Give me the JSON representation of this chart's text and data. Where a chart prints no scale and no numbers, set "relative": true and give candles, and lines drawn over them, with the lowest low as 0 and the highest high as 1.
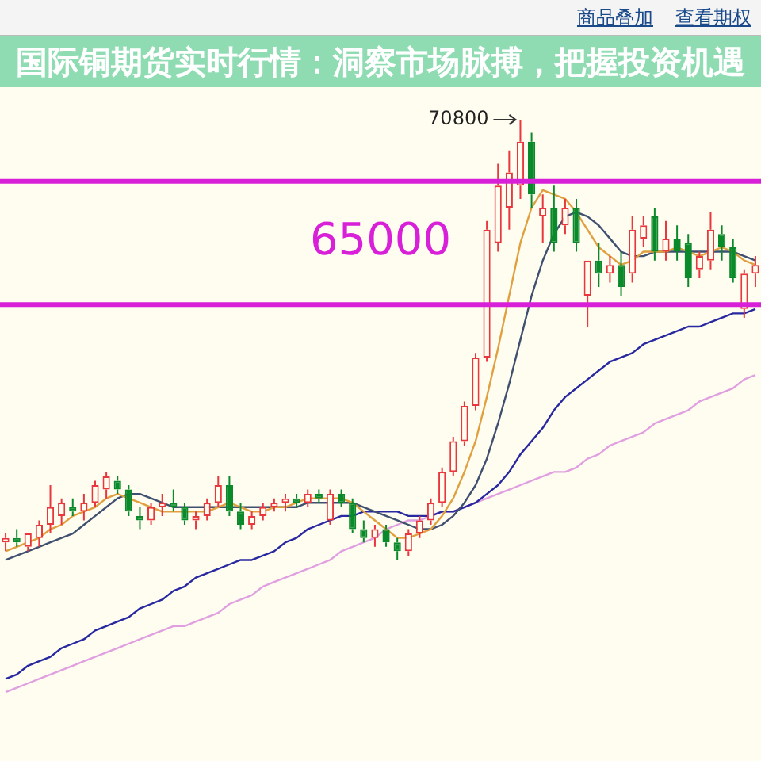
{
  "chart_data": {
    "type": "candlestick",
    "title": "国际铜期货实时行情：洞察市场脉搏，把握投资机遇",
    "relative": true,
    "categories": [
      null,
      null,
      null,
      null,
      null,
      null,
      null,
      null,
      null,
      null,
      null,
      null,
      null,
      null,
      null,
      null,
      null,
      null,
      null,
      null,
      null,
      null,
      null,
      null,
      null,
      null,
      null,
      null,
      null,
      null,
      null,
      null,
      null,
      null,
      null,
      null,
      null,
      null,
      null,
      null,
      null,
      null,
      null,
      null,
      null,
      null,
      null,
      null,
      null,
      null,
      null,
      null,
      null,
      null,
      null,
      null,
      null,
      null,
      null,
      null,
      null,
      null,
      null,
      null,
      null,
      null,
      null,
      null
    ],
    "ohlc": [
      [
        0.04,
        0.06,
        0.02,
        0.05
      ],
      [
        0.05,
        0.07,
        0.03,
        0.04
      ],
      [
        0.03,
        0.06,
        0.02,
        0.06
      ],
      [
        0.05,
        0.09,
        0.03,
        0.08
      ],
      [
        0.08,
        0.17,
        0.06,
        0.12
      ],
      [
        0.1,
        0.14,
        0.08,
        0.13
      ],
      [
        0.12,
        0.14,
        0.1,
        0.11
      ],
      [
        0.11,
        0.15,
        0.09,
        0.13
      ],
      [
        0.13,
        0.18,
        0.12,
        0.17
      ],
      [
        0.16,
        0.2,
        0.14,
        0.19
      ],
      [
        0.18,
        0.19,
        0.15,
        0.16
      ],
      [
        0.16,
        0.17,
        0.1,
        0.11
      ],
      [
        0.1,
        0.12,
        0.07,
        0.09
      ],
      [
        0.09,
        0.13,
        0.08,
        0.12
      ],
      [
        0.12,
        0.15,
        0.1,
        0.13
      ],
      [
        0.13,
        0.16,
        0.11,
        0.12
      ],
      [
        0.12,
        0.13,
        0.08,
        0.09
      ],
      [
        0.09,
        0.11,
        0.07,
        0.1
      ],
      [
        0.1,
        0.14,
        0.09,
        0.13
      ],
      [
        0.13,
        0.19,
        0.12,
        0.17
      ],
      [
        0.17,
        0.19,
        0.1,
        0.11
      ],
      [
        0.11,
        0.13,
        0.07,
        0.08
      ],
      [
        0.08,
        0.11,
        0.07,
        0.1
      ],
      [
        0.1,
        0.13,
        0.09,
        0.12
      ],
      [
        0.12,
        0.14,
        0.11,
        0.13
      ],
      [
        0.13,
        0.15,
        0.11,
        0.14
      ],
      [
        0.14,
        0.15,
        0.12,
        0.13
      ],
      [
        0.13,
        0.16,
        0.12,
        0.15
      ],
      [
        0.15,
        0.16,
        0.13,
        0.14
      ],
      [
        0.09,
        0.16,
        0.08,
        0.15
      ],
      [
        0.15,
        0.16,
        0.12,
        0.13
      ],
      [
        0.13,
        0.14,
        0.06,
        0.07
      ],
      [
        0.07,
        0.09,
        0.04,
        0.05
      ],
      [
        0.05,
        0.08,
        0.03,
        0.07
      ],
      [
        0.07,
        0.08,
        0.03,
        0.04
      ],
      [
        0.04,
        0.05,
        0.0,
        0.02
      ],
      [
        0.02,
        0.07,
        0.01,
        0.06
      ],
      [
        0.06,
        0.1,
        0.05,
        0.09
      ],
      [
        0.09,
        0.14,
        0.08,
        0.13
      ],
      [
        0.13,
        0.21,
        0.12,
        0.2
      ],
      [
        0.2,
        0.28,
        0.19,
        0.27
      ],
      [
        0.27,
        0.36,
        0.26,
        0.35
      ],
      [
        0.35,
        0.47,
        0.34,
        0.46
      ],
      [
        0.46,
        0.77,
        0.45,
        0.75
      ],
      [
        0.72,
        0.9,
        0.7,
        0.85
      ],
      [
        0.8,
        0.93,
        0.75,
        0.88
      ],
      [
        0.85,
        1.0,
        0.82,
        0.95
      ],
      [
        0.95,
        0.97,
        0.8,
        0.83
      ],
      [
        0.78,
        0.83,
        0.72,
        0.8
      ],
      [
        0.8,
        0.85,
        0.7,
        0.72
      ],
      [
        0.76,
        0.82,
        0.74,
        0.8
      ],
      [
        0.8,
        0.82,
        0.7,
        0.72
      ],
      [
        0.6,
        0.68,
        0.53,
        0.68
      ],
      [
        0.68,
        0.72,
        0.62,
        0.65
      ],
      [
        0.65,
        0.69,
        0.63,
        0.67
      ],
      [
        0.67,
        0.7,
        0.6,
        0.62
      ],
      [
        0.65,
        0.78,
        0.63,
        0.75
      ],
      [
        0.73,
        0.78,
        0.71,
        0.76
      ],
      [
        0.78,
        0.8,
        0.68,
        0.7
      ],
      [
        0.7,
        0.77,
        0.68,
        0.73
      ],
      [
        0.73,
        0.76,
        0.68,
        0.7
      ],
      [
        0.72,
        0.74,
        0.62,
        0.64
      ],
      [
        0.66,
        0.7,
        0.64,
        0.69
      ],
      [
        0.68,
        0.79,
        0.66,
        0.75
      ],
      [
        0.74,
        0.76,
        0.68,
        0.71
      ],
      [
        0.71,
        0.73,
        0.63,
        0.64
      ],
      [
        0.57,
        0.66,
        0.55,
        0.65
      ],
      [
        0.65,
        0.69,
        0.62,
        0.67
      ]
    ],
    "colors": [
      "#e8383d",
      "#0a8a2a",
      "#e8383d",
      "#e8383d",
      "#e8383d",
      "#e8383d",
      "#0a8a2a",
      "#e8383d",
      "#e8383d",
      "#e8383d",
      "#0a8a2a",
      "#0a8a2a",
      "#0a8a2a",
      "#e8383d",
      "#e8383d",
      "#0a8a2a",
      "#0a8a2a",
      "#e8383d",
      "#e8383d",
      "#e8383d",
      "#0a8a2a",
      "#0a8a2a",
      "#e8383d",
      "#e8383d",
      "#e8383d",
      "#e8383d",
      "#0a8a2a",
      "#e8383d",
      "#0a8a2a",
      "#e8383d",
      "#0a8a2a",
      "#0a8a2a",
      "#0a8a2a",
      "#e8383d",
      "#0a8a2a",
      "#0a8a2a",
      "#e8383d",
      "#e8383d",
      "#e8383d",
      "#e8383d",
      "#e8383d",
      "#e8383d",
      "#e8383d",
      "#e8383d",
      "#e8383d",
      "#e8383d",
      "#e8383d",
      "#0a8a2a",
      "#e8383d",
      "#0a8a2a",
      "#e8383d",
      "#0a8a2a",
      "#e8383d",
      "#0a8a2a",
      "#e8383d",
      "#0a8a2a",
      "#e8383d",
      "#e8383d",
      "#0a8a2a",
      "#e8383d",
      "#0a8a2a",
      "#0a8a2a",
      "#e8383d",
      "#e8383d",
      "#0a8a2a",
      "#0a8a2a",
      "#e8383d",
      "#e8383d"
    ],
    "series": [
      {
        "type": "line",
        "color": "#e0a040",
        "values": [
          0.02,
          0.03,
          0.04,
          0.05,
          0.07,
          0.08,
          0.1,
          0.11,
          0.12,
          0.14,
          0.15,
          0.14,
          0.13,
          0.12,
          0.11,
          0.11,
          0.11,
          0.11,
          0.11,
          0.12,
          0.13,
          0.12,
          0.11,
          0.11,
          0.12,
          0.12,
          0.13,
          0.14,
          0.14,
          0.14,
          0.14,
          0.13,
          0.11,
          0.09,
          0.07,
          0.05,
          0.05,
          0.06,
          0.07,
          0.1,
          0.14,
          0.2,
          0.27,
          0.37,
          0.48,
          0.6,
          0.72,
          0.8,
          0.84,
          0.83,
          0.82,
          0.79,
          0.75,
          0.71,
          0.69,
          0.67,
          0.68,
          0.7,
          0.7,
          0.7,
          0.71,
          0.7,
          0.69,
          0.7,
          0.71,
          0.7,
          0.68,
          0.67
        ]
      },
      {
        "type": "line",
        "color": "#405070",
        "values": [
          0.0,
          0.01,
          0.02,
          0.03,
          0.04,
          0.05,
          0.06,
          0.08,
          0.1,
          0.12,
          0.14,
          0.15,
          0.15,
          0.14,
          0.13,
          0.12,
          0.12,
          0.12,
          0.12,
          0.12,
          0.12,
          0.12,
          0.12,
          0.12,
          0.12,
          0.12,
          0.12,
          0.13,
          0.13,
          0.13,
          0.13,
          0.13,
          0.12,
          0.11,
          0.1,
          0.09,
          0.08,
          0.07,
          0.07,
          0.08,
          0.1,
          0.13,
          0.17,
          0.23,
          0.31,
          0.4,
          0.5,
          0.6,
          0.68,
          0.74,
          0.78,
          0.79,
          0.78,
          0.76,
          0.73,
          0.7,
          0.69,
          0.69,
          0.7,
          0.7,
          0.7,
          0.7,
          0.7,
          0.7,
          0.7,
          0.7,
          0.69,
          0.68
        ]
      },
      {
        "type": "line",
        "color": "#2828a0",
        "values": [
          -0.27,
          -0.26,
          -0.24,
          -0.23,
          -0.22,
          -0.2,
          -0.19,
          -0.18,
          -0.16,
          -0.15,
          -0.14,
          -0.13,
          -0.11,
          -0.1,
          -0.09,
          -0.07,
          -0.06,
          -0.04,
          -0.03,
          -0.02,
          -0.01,
          0.0,
          0.0,
          0.01,
          0.02,
          0.04,
          0.05,
          0.07,
          0.08,
          0.09,
          0.1,
          0.1,
          0.11,
          0.11,
          0.11,
          0.11,
          0.1,
          0.1,
          0.1,
          0.11,
          0.11,
          0.12,
          0.13,
          0.15,
          0.17,
          0.2,
          0.24,
          0.27,
          0.3,
          0.34,
          0.37,
          0.39,
          0.41,
          0.43,
          0.45,
          0.46,
          0.47,
          0.49,
          0.5,
          0.51,
          0.52,
          0.53,
          0.53,
          0.54,
          0.55,
          0.56,
          0.56,
          0.57
        ]
      },
      {
        "type": "line",
        "color": "#e0a0e0",
        "values": [
          -0.3,
          -0.29,
          -0.28,
          -0.27,
          -0.26,
          -0.25,
          -0.24,
          -0.23,
          -0.22,
          -0.21,
          -0.2,
          -0.19,
          -0.18,
          -0.17,
          -0.16,
          -0.15,
          -0.15,
          -0.14,
          -0.13,
          -0.12,
          -0.1,
          -0.09,
          -0.08,
          -0.06,
          -0.05,
          -0.04,
          -0.03,
          -0.02,
          -0.01,
          0.0,
          0.02,
          0.03,
          0.04,
          0.05,
          0.07,
          0.08,
          0.09,
          0.09,
          0.1,
          0.11,
          0.11,
          0.12,
          0.13,
          0.14,
          0.15,
          0.16,
          0.17,
          0.18,
          0.19,
          0.2,
          0.2,
          0.21,
          0.23,
          0.24,
          0.26,
          0.27,
          0.28,
          0.29,
          0.31,
          0.32,
          0.33,
          0.34,
          0.36,
          0.37,
          0.38,
          0.39,
          0.41,
          0.42
        ]
      }
    ],
    "ref_lines": [
      {
        "axis": "y",
        "value": 0.86,
        "label": null,
        "color": "#d820d8"
      },
      {
        "axis": "y",
        "value": 0.58,
        "label": null,
        "color": "#d820d8"
      }
    ],
    "annotations": [
      "商品叠加",
      "查看期权",
      "70800",
      "65000"
    ]
  }
}
